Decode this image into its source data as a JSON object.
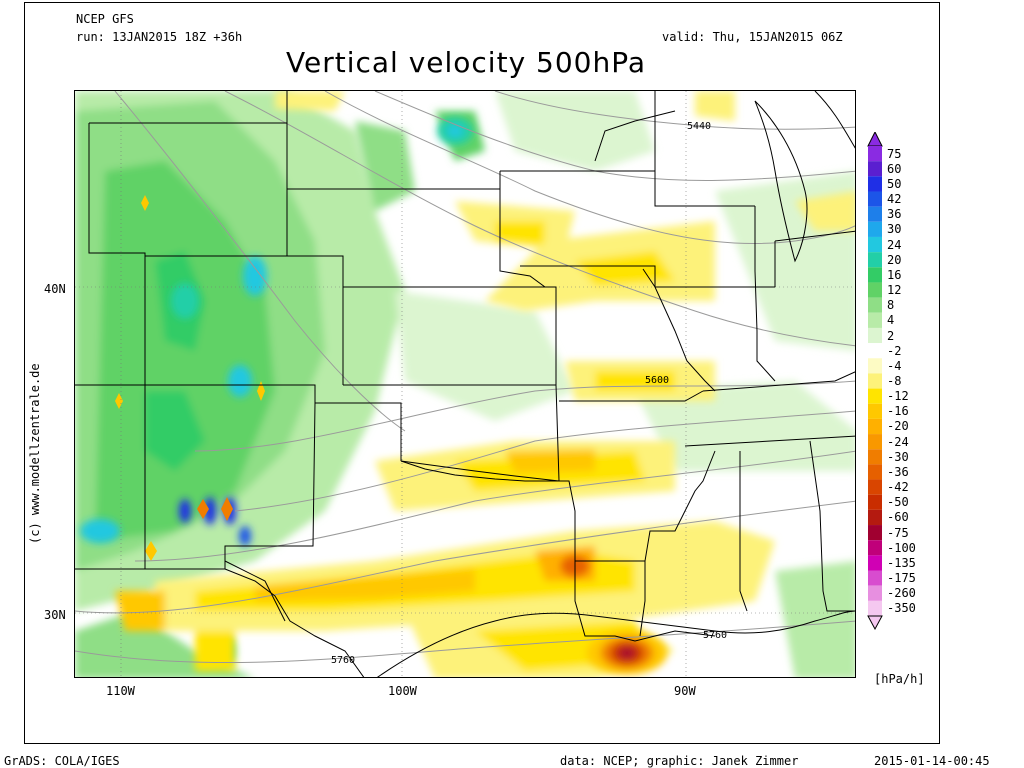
{
  "header": {
    "model": "NCEP GFS",
    "run": "run: 13JAN2015 18Z +36h",
    "valid": "valid: Thu, 15JAN2015 06Z",
    "title": "Vertical velocity 500hPa"
  },
  "map": {
    "lat_labels": [
      "40N",
      "30N"
    ],
    "lon_labels": [
      "110W",
      "100W",
      "90W"
    ],
    "contour_labels": [
      "5440",
      "5600",
      "5760",
      "5760"
    ],
    "watermark": "(c) www.modellzentrale.de"
  },
  "legend": {
    "values": [
      "75",
      "60",
      "50",
      "42",
      "36",
      "30",
      "24",
      "20",
      "16",
      "12",
      "8",
      "4",
      "2",
      "-2",
      "-4",
      "-8",
      "-12",
      "-16",
      "-20",
      "-24",
      "-30",
      "-36",
      "-42",
      "-50",
      "-60",
      "-75",
      "-100",
      "-135",
      "-175",
      "-260",
      "-350"
    ],
    "colors": [
      "#8a2be2",
      "#5a1fd0",
      "#1f2fe6",
      "#1c55e8",
      "#1e7fea",
      "#1fa8ec",
      "#22c8e0",
      "#22cfa7",
      "#33cc66",
      "#60d266",
      "#8fde86",
      "#b8eba8",
      "#dcf5d0",
      "#ffffff",
      "#fdfbc4",
      "#fdf27a",
      "#ffe400",
      "#ffc800",
      "#ffb000",
      "#f99800",
      "#f07d00",
      "#e66000",
      "#d94500",
      "#c92d00",
      "#b41a10",
      "#a00030",
      "#c0007a",
      "#d000b4",
      "#d84ccf",
      "#e78fe0",
      "#f5c8f0"
    ],
    "units": "[hPa/h]"
  },
  "footer": {
    "left": "GrADS: COLA/IGES",
    "mid": "data: NCEP; graphic: Janek Zimmer",
    "right": "2015-01-14-00:45"
  }
}
